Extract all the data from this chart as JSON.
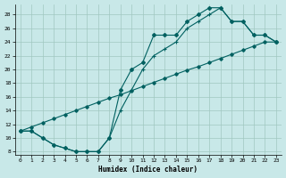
{
  "xlabel": "Humidex (Indice chaleur)",
  "background_color": "#c8e8e8",
  "grid_color": "#a0c8c0",
  "line_color": "#006060",
  "xlim": [
    -0.5,
    23.5
  ],
  "ylim": [
    7.5,
    29.5
  ],
  "yticks": [
    8,
    10,
    12,
    14,
    16,
    18,
    20,
    22,
    24,
    26,
    28
  ],
  "xticks": [
    0,
    1,
    2,
    3,
    4,
    5,
    6,
    7,
    8,
    9,
    10,
    11,
    12,
    13,
    14,
    15,
    16,
    17,
    18,
    19,
    20,
    21,
    22,
    23
  ],
  "line1_x": [
    0,
    1,
    2,
    3,
    4,
    5,
    6,
    7,
    8,
    9,
    10,
    11,
    12,
    13,
    14,
    15,
    16,
    17,
    18,
    19,
    20,
    21,
    22,
    23
  ],
  "line1_y": [
    11,
    11,
    10,
    9,
    8.5,
    8,
    8,
    8,
    10,
    17,
    20,
    21,
    25,
    25,
    25,
    27,
    28,
    29,
    29,
    27,
    27,
    25,
    25,
    24
  ],
  "line2_x": [
    0,
    1,
    2,
    3,
    4,
    5,
    6,
    7,
    8,
    9,
    10,
    11,
    12,
    13,
    14,
    15,
    16,
    17,
    18,
    19,
    20,
    21,
    22,
    23
  ],
  "line2_y": [
    11,
    11,
    10,
    9,
    8.5,
    8,
    8,
    8,
    10,
    14,
    17,
    20,
    22,
    23,
    24,
    26,
    27,
    28,
    29,
    27,
    27,
    25,
    25,
    24
  ],
  "line3_x": [
    0,
    1,
    2,
    3,
    4,
    5,
    6,
    7,
    8,
    9,
    10,
    11,
    12,
    13,
    14,
    15,
    16,
    17,
    18,
    19,
    20,
    21,
    22,
    23
  ],
  "line3_y": [
    11,
    11.6,
    12.2,
    12.8,
    13.4,
    14.0,
    14.6,
    15.2,
    15.8,
    16.3,
    16.9,
    17.5,
    18.1,
    18.7,
    19.3,
    19.9,
    20.4,
    21.0,
    21.6,
    22.2,
    22.8,
    23.4,
    24.0,
    24.0
  ]
}
